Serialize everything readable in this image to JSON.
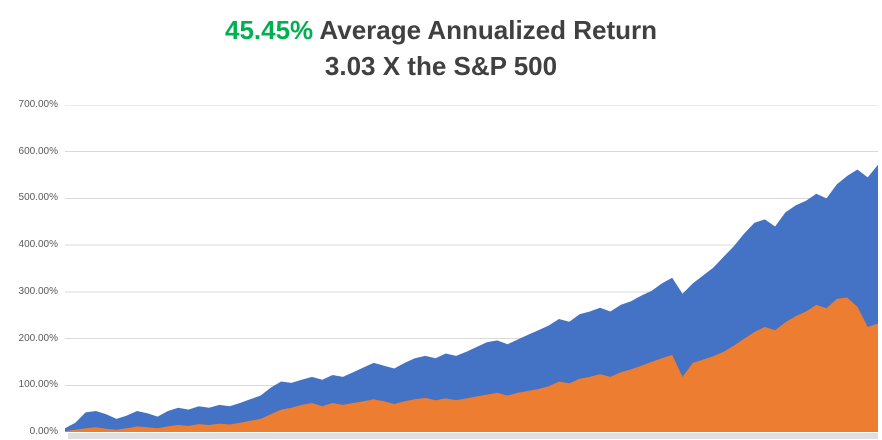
{
  "colors": {
    "highlight_green": "#00B050",
    "title_gray": "#404040",
    "blue": "#4472C4",
    "orange": "#ED7D31",
    "gridline": "#D9D9D9",
    "axis_line": "#BFBFBF",
    "axis_label": "#595959",
    "bottom_strip": "#DFDFDF",
    "background": "#FFFFFF"
  },
  "chart_data": {
    "type": "area",
    "title": "45.45% Average Annualized Return",
    "title_highlight": "45.45%",
    "title_rest": " Average Annualized Return",
    "subtitle": "3.03 X the S&P 500",
    "ylim": [
      0,
      700
    ],
    "y_unit": "%",
    "grid": true,
    "legend": "none",
    "x_tick_labels": [],
    "y_tick_labels": [
      "700.00%",
      "600.00%",
      "500.00%",
      "400.00%",
      "300.00%",
      "200.00%",
      "100.00%",
      "0.00%"
    ],
    "series": [
      {
        "name": "blue-series",
        "color": "#4472C4",
        "values": [
          8,
          20,
          42,
          45,
          38,
          28,
          35,
          45,
          40,
          33,
          45,
          52,
          48,
          55,
          52,
          58,
          55,
          62,
          70,
          78,
          95,
          108,
          105,
          112,
          118,
          112,
          122,
          118,
          128,
          138,
          148,
          142,
          136,
          148,
          158,
          163,
          158,
          168,
          163,
          172,
          182,
          192,
          196,
          188,
          198,
          208,
          218,
          228,
          242,
          236,
          252,
          258,
          266,
          258,
          272,
          280,
          292,
          302,
          318,
          330,
          296,
          318,
          335,
          352,
          375,
          398,
          425,
          448,
          455,
          440,
          470,
          485,
          495,
          510,
          500,
          530,
          548,
          562,
          545,
          572
        ]
      },
      {
        "name": "orange-series",
        "color": "#ED7D31",
        "values": [
          2,
          5,
          8,
          10,
          7,
          5,
          8,
          12,
          10,
          8,
          12,
          15,
          13,
          17,
          15,
          18,
          16,
          20,
          24,
          28,
          38,
          48,
          52,
          58,
          62,
          55,
          62,
          58,
          62,
          66,
          70,
          66,
          60,
          66,
          70,
          73,
          68,
          72,
          68,
          72,
          76,
          80,
          84,
          78,
          84,
          88,
          92,
          98,
          108,
          104,
          114,
          118,
          124,
          118,
          128,
          134,
          142,
          150,
          158,
          165,
          118,
          148,
          155,
          162,
          172,
          185,
          200,
          214,
          225,
          218,
          235,
          248,
          258,
          272,
          265,
          285,
          288,
          268,
          225,
          232
        ]
      }
    ]
  }
}
